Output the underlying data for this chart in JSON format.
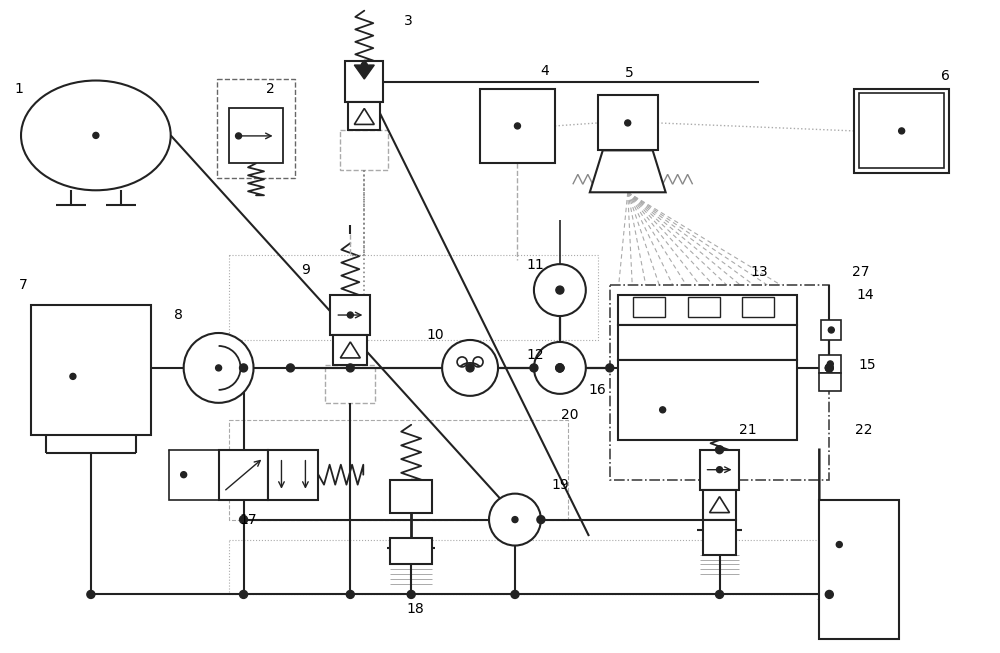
{
  "bg": "#ffffff",
  "lc": "#222222",
  "dc": "#aaaaaa",
  "figsize": [
    10.0,
    6.53
  ],
  "dpi": 100
}
